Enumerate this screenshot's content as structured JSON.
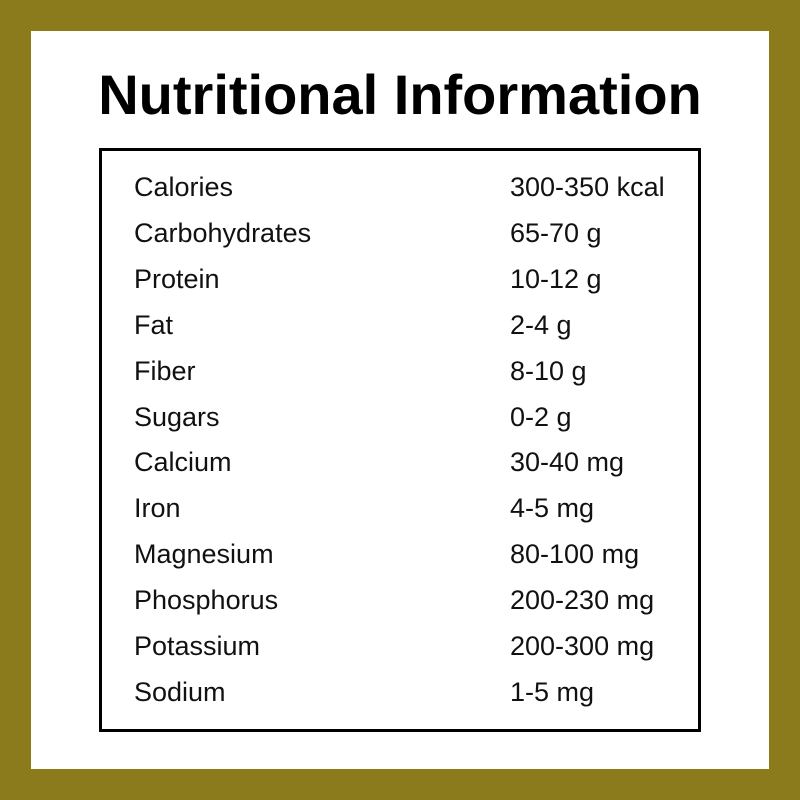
{
  "title": "Nutritional Information",
  "colors": {
    "frame": "#8b7b1d",
    "background": "#ffffff",
    "text": "#000000"
  },
  "rows": [
    {
      "label": "Calories",
      "value": "300-350 kcal"
    },
    {
      "label": "Carbohydrates",
      "value": "65-70 g"
    },
    {
      "label": "Protein",
      "value": "10-12 g"
    },
    {
      "label": "Fat",
      "value": "2-4 g"
    },
    {
      "label": "Fiber",
      "value": "8-10 g"
    },
    {
      "label": "Sugars",
      "value": "0-2 g"
    },
    {
      "label": "Calcium",
      "value": "30-40 mg"
    },
    {
      "label": "Iron",
      "value": "4-5 mg"
    },
    {
      "label": "Magnesium",
      "value": "80-100 mg"
    },
    {
      "label": "Phosphorus",
      "value": "200-230 mg"
    },
    {
      "label": "Potassium",
      "value": "200-300 mg"
    },
    {
      "label": "Sodium",
      "value": "1-5 mg"
    }
  ]
}
